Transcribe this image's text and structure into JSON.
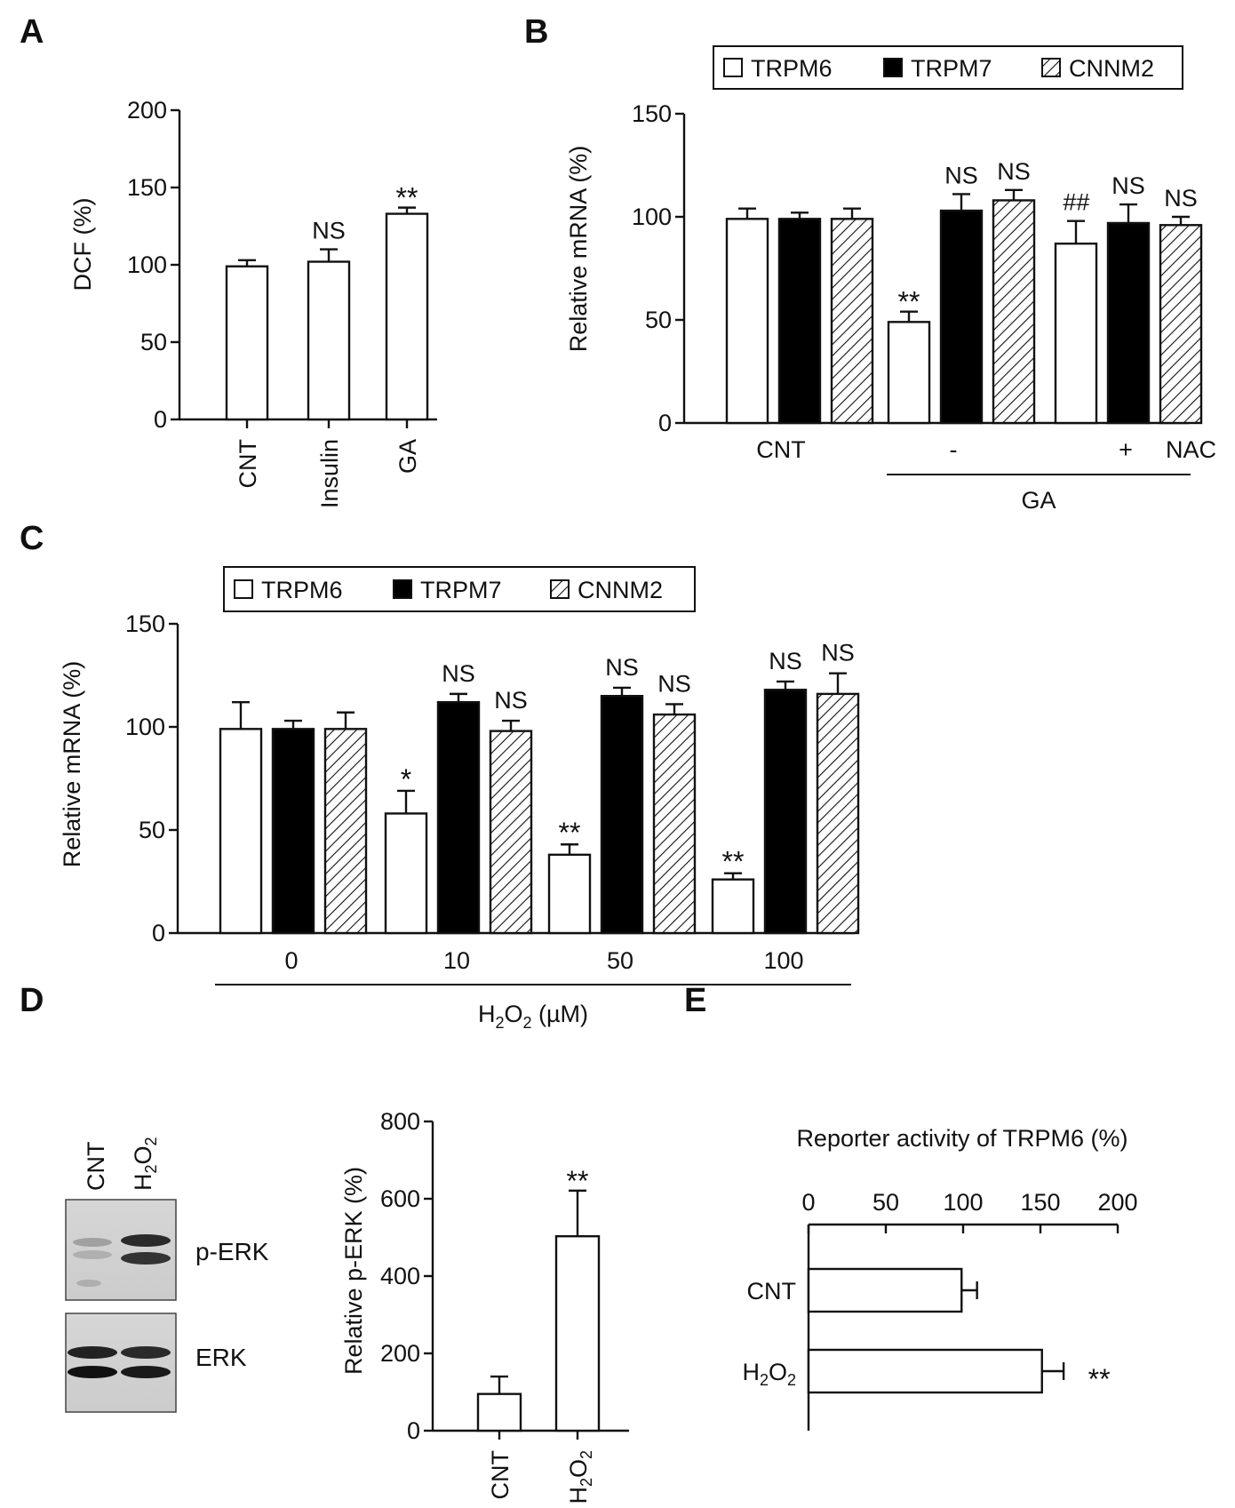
{
  "panel_labels": {
    "a": "A",
    "b": "B",
    "c": "C",
    "d": "D",
    "e": "E"
  },
  "legend": {
    "series": [
      "TRPM6",
      "TRPM7",
      "CNNM2"
    ]
  },
  "chart_data": [
    {
      "id": "A",
      "type": "bar",
      "title": "",
      "xlabel": "",
      "ylabel": "DCF  (%)",
      "ylim": [
        0,
        200
      ],
      "yticks": [
        "0",
        "50",
        "100",
        "150",
        "200"
      ],
      "categories": [
        "CNT",
        "Insulin",
        "GA"
      ],
      "values": [
        99,
        102,
        133
      ],
      "errors": [
        4,
        8,
        4
      ],
      "annotations": [
        "",
        "NS",
        "**"
      ]
    },
    {
      "id": "B",
      "type": "bar",
      "ylabel": "Relative mRNA  (%)",
      "ylim": [
        0,
        150
      ],
      "yticks": [
        "0",
        "50",
        "100",
        "150"
      ],
      "groups": [
        "CNT",
        "-",
        "+"
      ],
      "series": [
        {
          "name": "TRPM6",
          "values": [
            99,
            49,
            87
          ],
          "errors": [
            5,
            5,
            11
          ],
          "annotations": [
            "",
            "**",
            "##"
          ]
        },
        {
          "name": "TRPM7",
          "values": [
            99,
            103,
            97
          ],
          "errors": [
            3,
            8,
            9
          ],
          "annotations": [
            "",
            "NS",
            "NS"
          ]
        },
        {
          "name": "CNNM2",
          "values": [
            99,
            108,
            96
          ],
          "errors": [
            5,
            5,
            4
          ],
          "annotations": [
            "",
            "NS",
            "NS"
          ]
        }
      ],
      "bracket_label": "GA",
      "extra_label": "NAC"
    },
    {
      "id": "C",
      "type": "bar",
      "ylabel": "Relative mRNA  (%)",
      "ylim": [
        0,
        150
      ],
      "yticks": [
        "0",
        "50",
        "100",
        "150"
      ],
      "groups": [
        "0",
        "10",
        "50",
        "100"
      ],
      "series": [
        {
          "name": "TRPM6",
          "values": [
            99,
            58,
            38,
            26
          ],
          "errors": [
            13,
            11,
            5,
            3
          ],
          "annotations": [
            "",
            "*",
            "**",
            "**"
          ]
        },
        {
          "name": "TRPM7",
          "values": [
            99,
            112,
            115,
            118
          ],
          "errors": [
            4,
            4,
            4,
            4
          ],
          "annotations": [
            "",
            "NS",
            "NS",
            "NS"
          ]
        },
        {
          "name": "CNNM2",
          "values": [
            99,
            98,
            106,
            116
          ],
          "errors": [
            8,
            5,
            5,
            10
          ],
          "annotations": [
            "",
            "NS",
            "NS",
            "NS"
          ]
        }
      ],
      "xlabel_parts": {
        "pre": "H",
        "sub1": "2",
        "mid": "O",
        "sub2": "2",
        "post": " (µM)"
      }
    },
    {
      "id": "D",
      "type": "bar",
      "ylabel": "Relative p-ERK  (%)",
      "ylim": [
        0,
        800
      ],
      "yticks": [
        "0",
        "200",
        "400",
        "600",
        "800"
      ],
      "categories": [
        "CNT",
        "H2O2"
      ],
      "values": [
        95,
        503
      ],
      "errors": [
        45,
        118
      ],
      "annotations": [
        "",
        "**"
      ]
    },
    {
      "id": "E",
      "type": "bar",
      "orientation": "horizontal",
      "title": "Reporter activity of TRPM6 (%)",
      "xlim": [
        0,
        200
      ],
      "xticks": [
        "0",
        "50",
        "100",
        "150",
        "200"
      ],
      "categories": [
        "CNT",
        "H2O2"
      ],
      "values": [
        99,
        151
      ],
      "errors": [
        10,
        14
      ],
      "annotations": [
        "",
        "**"
      ]
    }
  ],
  "blot": {
    "lanes": [
      "CNT",
      "H2O2"
    ],
    "bands": [
      "p-ERK",
      "ERK"
    ]
  },
  "formula": {
    "h": "H",
    "two": "2",
    "o": "O"
  }
}
